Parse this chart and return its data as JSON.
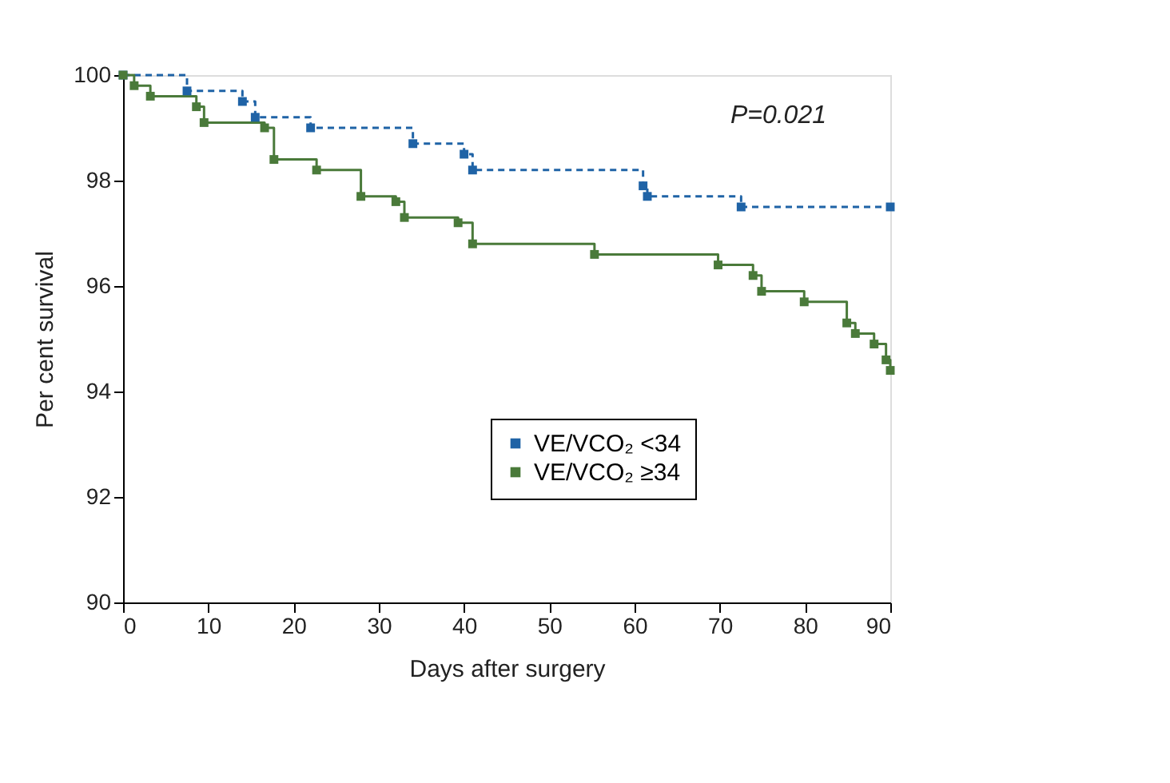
{
  "chart_data": {
    "type": "step",
    "xlabel": "Days after surgery",
    "ylabel": "Per cent survival",
    "xlim": [
      0,
      90
    ],
    "xticks": [
      0,
      10,
      20,
      30,
      40,
      50,
      60,
      70,
      80,
      90
    ],
    "ylim": [
      90,
      100
    ],
    "yticks": [
      90,
      92,
      94,
      96,
      98,
      100
    ],
    "grid": false,
    "legend": "bottom",
    "marker": "square",
    "annotations": [
      "P=0.021"
    ],
    "series": [
      {
        "name": "VE/VCO₂ <34",
        "color": "#1f63a6",
        "line_style": "dashed",
        "x": [
          0,
          7.5,
          14,
          15.5,
          22,
          34,
          40,
          41,
          61,
          61.5,
          72.5,
          90
        ],
        "values": [
          100,
          99.7,
          99.5,
          99.2,
          99.0,
          98.7,
          98.5,
          98.2,
          97.9,
          97.7,
          97.5,
          97.5
        ]
      },
      {
        "name": "VE/VCO₂ ≥34",
        "color": "#4a7a3a",
        "line_style": "solid",
        "x": [
          0,
          1.3,
          3.2,
          8.6,
          9.5,
          16.6,
          17.7,
          22.7,
          27.9,
          32,
          33,
          39.3,
          41,
          55.3,
          69.8,
          73.9,
          74.9,
          79.9,
          84.9,
          85.9,
          88.1,
          89.5,
          90
        ],
        "values": [
          100,
          99.8,
          99.6,
          99.4,
          99.1,
          99.0,
          98.4,
          98.2,
          97.7,
          97.6,
          97.3,
          97.2,
          96.8,
          96.6,
          96.4,
          96.2,
          95.9,
          95.7,
          95.3,
          95.1,
          94.9,
          94.6,
          94.4
        ]
      }
    ]
  }
}
